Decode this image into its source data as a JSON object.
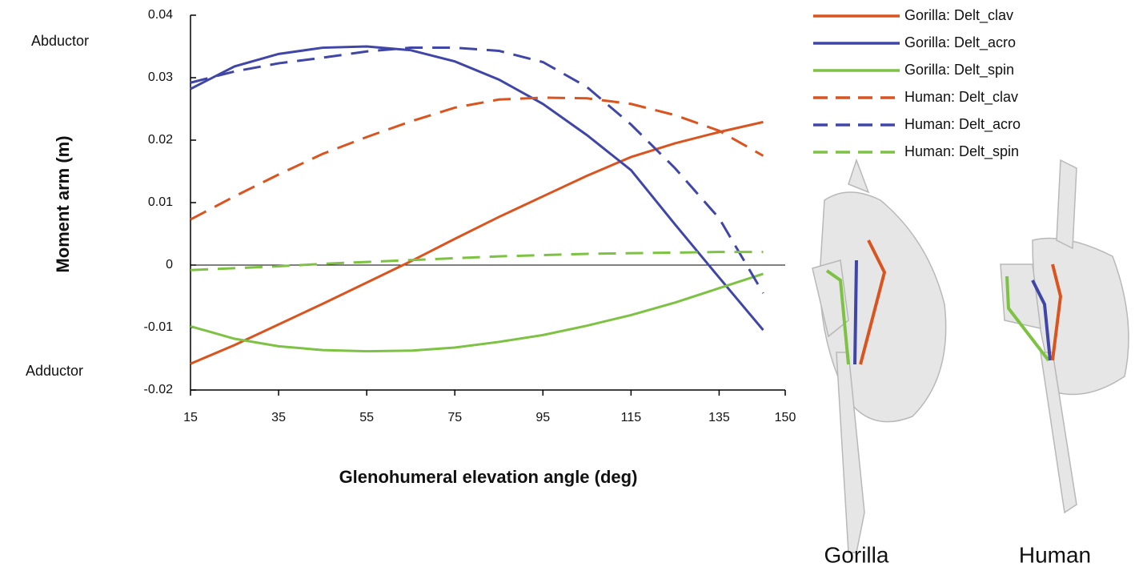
{
  "chart_data": {
    "type": "line",
    "y_label": "Moment arm (m)",
    "x_label": "Glenohumeral elevation angle (deg)",
    "annotations": [
      "Abductor",
      "Adductor"
    ],
    "image_labels": [
      "Gorilla",
      "Human"
    ],
    "x": [
      15,
      25,
      35,
      45,
      55,
      65,
      75,
      85,
      95,
      105,
      115,
      125,
      135,
      145
    ],
    "xlim": [
      15,
      150
    ],
    "xticks": [
      15,
      35,
      55,
      75,
      95,
      115,
      135,
      150
    ],
    "ylim": [
      -0.02,
      0.04
    ],
    "yticks": [
      {
        "value": -0.02,
        "label": "-0.02"
      },
      {
        "value": -0.01,
        "label": "-0.01"
      },
      0,
      0.01,
      0.02,
      0.03,
      0.04
    ],
    "series": [
      {
        "name": "Gorilla: Delt_clav",
        "color": "#d9541e",
        "dashed": false,
        "values": [
          -0.0158,
          -0.0128,
          -0.0095,
          -0.0062,
          -0.0028,
          0.0006,
          0.0042,
          0.0077,
          0.011,
          0.0143,
          0.0173,
          0.0195,
          0.0213,
          0.0229
        ]
      },
      {
        "name": "Gorilla: Delt_acro",
        "color": "#3f46a8",
        "dashed": false,
        "values": [
          0.0282,
          0.0318,
          0.0338,
          0.0348,
          0.035,
          0.0344,
          0.0326,
          0.0297,
          0.0258,
          0.0208,
          0.0152,
          0.0065,
          -0.002,
          -0.0104
        ]
      },
      {
        "name": "Gorilla: Delt_spin",
        "color": "#7dc242",
        "dashed": false,
        "values": [
          -0.0098,
          -0.0118,
          -0.013,
          -0.0136,
          -0.0138,
          -0.0137,
          -0.0132,
          -0.0123,
          -0.0112,
          -0.0097,
          -0.008,
          -0.006,
          -0.0037,
          -0.0014
        ]
      },
      {
        "name": "Human: Delt_clav",
        "color": "#d9541e",
        "dashed": true,
        "values": [
          0.0073,
          0.011,
          0.0145,
          0.0178,
          0.0205,
          0.023,
          0.0252,
          0.0265,
          0.0268,
          0.0267,
          0.0258,
          0.024,
          0.0215,
          0.0175
        ]
      },
      {
        "name": "Human: Delt_acro",
        "color": "#3f46a8",
        "dashed": true,
        "values": [
          0.0292,
          0.031,
          0.0323,
          0.0332,
          0.0342,
          0.0348,
          0.0348,
          0.0343,
          0.0325,
          0.0285,
          0.0225,
          0.0155,
          0.0075,
          -0.0045
        ]
      },
      {
        "name": "Human: Delt_spin",
        "color": "#7dc242",
        "dashed": true,
        "values": [
          -0.0008,
          -0.0005,
          -0.0002,
          0.0002,
          0.0005,
          0.0008,
          0.0011,
          0.0014,
          0.0016,
          0.0018,
          0.0019,
          0.002,
          0.0021,
          0.0021
        ]
      }
    ],
    "zero_line": true,
    "legend": "top-right"
  }
}
